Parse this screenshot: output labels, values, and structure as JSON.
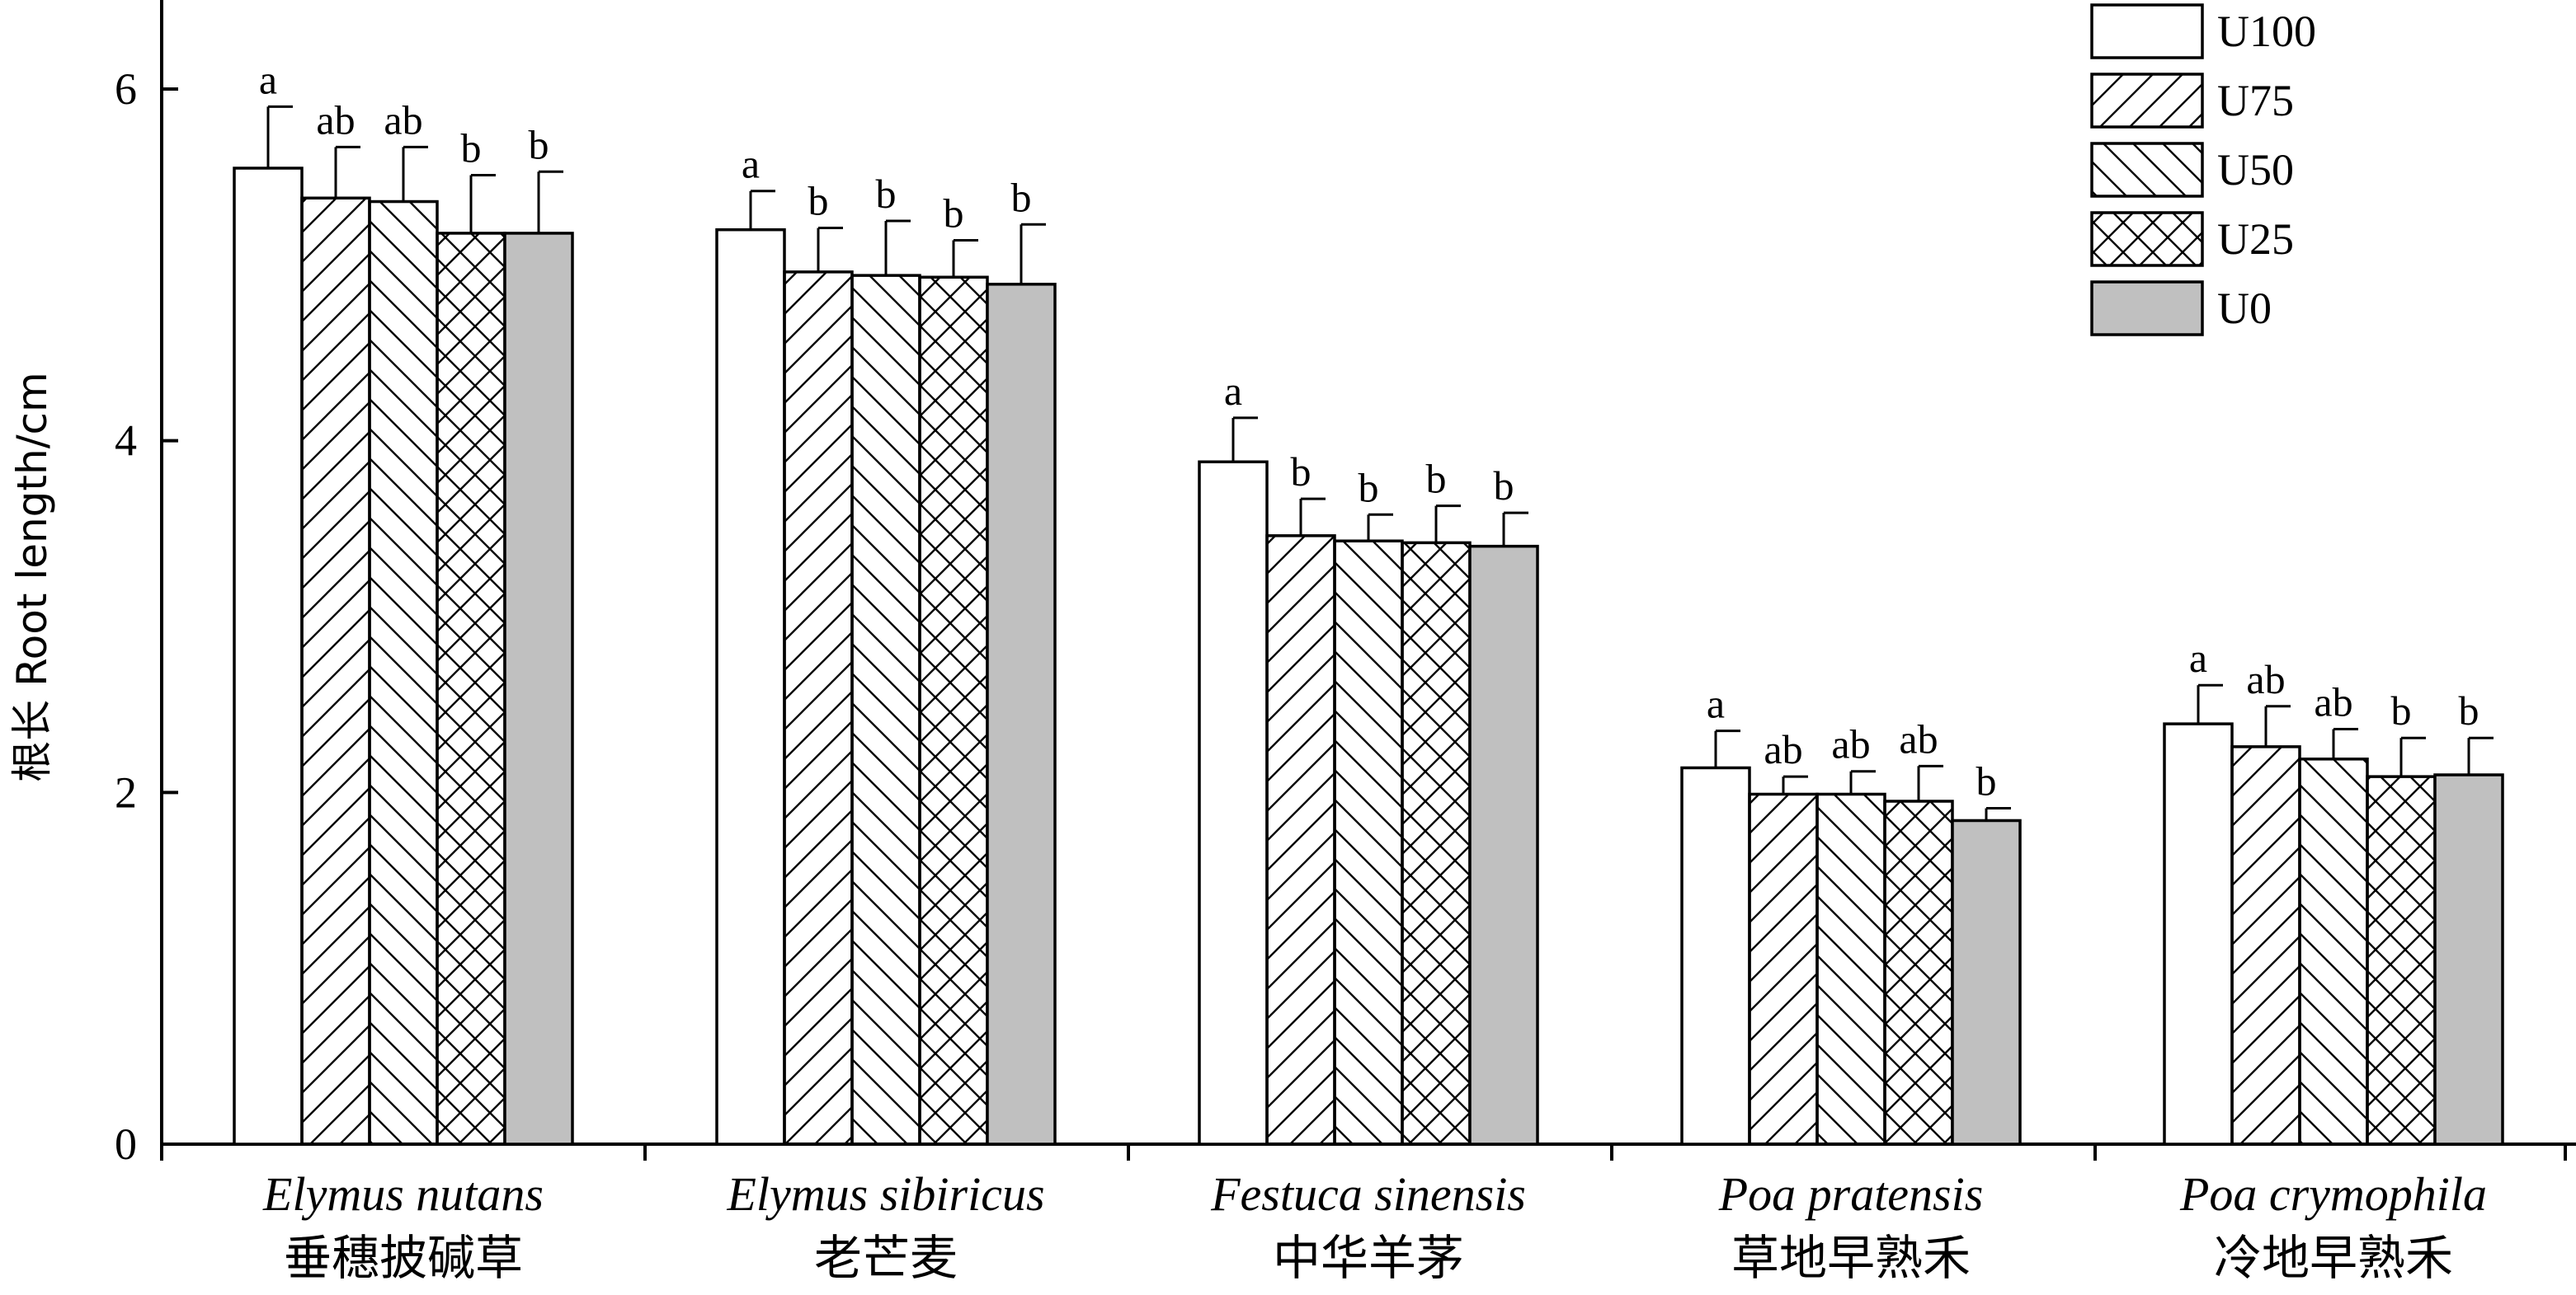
{
  "chart_data": {
    "type": "bar",
    "ylabel": "根长 Root length/cm",
    "ylim": [
      0,
      6.5
    ],
    "yticks": [
      0,
      2,
      4,
      6
    ],
    "categories": [
      {
        "latin": "Elymus nutans",
        "cn": "垂穗披碱草"
      },
      {
        "latin": "Elymus sibiricus",
        "cn": "老芒麦"
      },
      {
        "latin": "Festuca sinensis",
        "cn": "中华羊茅"
      },
      {
        "latin": "Poa pratensis",
        "cn": "草地早熟禾"
      },
      {
        "latin": "Poa crymophila",
        "cn": "冷地早熟禾"
      }
    ],
    "series": [
      {
        "name": "U100",
        "pattern": "open",
        "values": [
          5.55,
          5.2,
          3.88,
          2.14,
          2.39
        ],
        "errors": [
          0.35,
          0.22,
          0.25,
          0.21,
          0.22
        ],
        "labels": [
          "a",
          "a",
          "a",
          "a",
          "a"
        ]
      },
      {
        "name": "U75",
        "pattern": "diagonal-right",
        "values": [
          5.38,
          4.96,
          3.46,
          1.99,
          2.26
        ],
        "errors": [
          0.29,
          0.25,
          0.21,
          0.1,
          0.23
        ],
        "labels": [
          "ab",
          "b",
          "b",
          "ab",
          "ab"
        ]
      },
      {
        "name": "U50",
        "pattern": "diagonal-left",
        "values": [
          5.36,
          4.94,
          3.43,
          1.99,
          2.19
        ],
        "errors": [
          0.31,
          0.31,
          0.15,
          0.13,
          0.17
        ],
        "labels": [
          "ab",
          "b",
          "b",
          "ab",
          "ab"
        ]
      },
      {
        "name": "U25",
        "pattern": "crosshatch",
        "values": [
          5.18,
          4.93,
          3.42,
          1.95,
          2.09
        ],
        "errors": [
          0.33,
          0.21,
          0.21,
          0.2,
          0.22
        ],
        "labels": [
          "b",
          "b",
          "b",
          "ab",
          "b"
        ]
      },
      {
        "name": "U0",
        "pattern": "gray",
        "values": [
          5.18,
          4.89,
          3.4,
          1.84,
          2.1
        ],
        "errors": [
          0.35,
          0.34,
          0.19,
          0.07,
          0.21
        ],
        "labels": [
          "b",
          "b",
          "b",
          "b",
          "b"
        ]
      }
    ],
    "legend_position": "top-right",
    "grid": false,
    "colors": {
      "gray_fill": "#c0c0c0",
      "stroke": "#000000",
      "background": "#ffffff"
    }
  }
}
